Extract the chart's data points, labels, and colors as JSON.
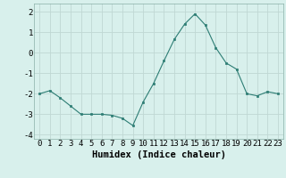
{
  "x": [
    0,
    1,
    2,
    3,
    4,
    5,
    6,
    7,
    8,
    9,
    10,
    11,
    12,
    13,
    14,
    15,
    16,
    17,
    18,
    19,
    20,
    21,
    22,
    23
  ],
  "y": [
    -2.0,
    -1.85,
    -2.2,
    -2.6,
    -3.0,
    -3.0,
    -3.0,
    -3.05,
    -3.2,
    -3.55,
    -2.4,
    -1.5,
    -0.4,
    0.65,
    1.4,
    1.9,
    1.35,
    0.25,
    -0.5,
    -0.8,
    -2.0,
    -2.1,
    -1.9,
    -2.0
  ],
  "line_color": "#2d7d74",
  "marker": "s",
  "marker_size": 2,
  "bg_color": "#d8f0ec",
  "grid_color": "#c0d8d4",
  "xlabel": "Humidex (Indice chaleur)",
  "xlim": [
    -0.5,
    23.5
  ],
  "ylim": [
    -4.2,
    2.4
  ],
  "yticks": [
    -4,
    -3,
    -2,
    -1,
    0,
    1,
    2
  ],
  "xticks": [
    0,
    1,
    2,
    3,
    4,
    5,
    6,
    7,
    8,
    9,
    10,
    11,
    12,
    13,
    14,
    15,
    16,
    17,
    18,
    19,
    20,
    21,
    22,
    23
  ],
  "tick_fontsize": 6.5,
  "xlabel_fontsize": 7.5
}
